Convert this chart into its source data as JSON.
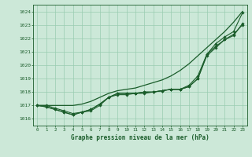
{
  "title": "Graphe pression niveau de la mer (hPa)",
  "bg_color": "#cce8d8",
  "grid_color": "#99ccb0",
  "line_color": "#1a5c2a",
  "xlim": [
    -0.5,
    23.5
  ],
  "ylim": [
    1015.5,
    1024.5
  ],
  "yticks": [
    1016,
    1017,
    1018,
    1019,
    1020,
    1021,
    1022,
    1023,
    1024
  ],
  "xticks": [
    0,
    1,
    2,
    3,
    4,
    5,
    6,
    7,
    8,
    9,
    10,
    11,
    12,
    13,
    14,
    15,
    16,
    17,
    18,
    19,
    20,
    21,
    22,
    23
  ],
  "smooth_line": [
    1017.0,
    1017.0,
    1017.0,
    1017.0,
    1017.0,
    1017.1,
    1017.3,
    1017.6,
    1017.9,
    1018.1,
    1018.2,
    1018.3,
    1018.5,
    1018.7,
    1018.9,
    1019.2,
    1019.6,
    1020.1,
    1020.7,
    1021.3,
    1021.9,
    1022.5,
    1023.2,
    1024.0
  ],
  "series": [
    [
      1017.0,
      1017.0,
      1016.8,
      1016.6,
      1016.4,
      1016.5,
      1016.7,
      1017.1,
      1017.6,
      1017.9,
      1017.9,
      1017.9,
      1018.0,
      1018.0,
      1018.1,
      1018.2,
      1018.2,
      1018.4,
      1019.0,
      1020.8,
      1021.4,
      1021.9,
      1022.3,
      1023.0
    ],
    [
      1017.0,
      1016.9,
      1016.7,
      1016.5,
      1016.3,
      1016.5,
      1016.6,
      1017.0,
      1017.6,
      1017.8,
      1017.8,
      1017.9,
      1017.9,
      1018.0,
      1018.1,
      1018.2,
      1018.2,
      1018.4,
      1019.0,
      1020.7,
      1021.3,
      1021.9,
      1022.2,
      1023.1
    ],
    [
      1017.0,
      1016.9,
      1016.7,
      1016.5,
      1016.3,
      1016.5,
      1016.7,
      1017.1,
      1017.6,
      1017.9,
      1017.9,
      1017.9,
      1018.0,
      1018.0,
      1018.1,
      1018.2,
      1018.2,
      1018.5,
      1019.2,
      1020.8,
      1021.6,
      1022.1,
      1022.5,
      1023.9
    ]
  ]
}
